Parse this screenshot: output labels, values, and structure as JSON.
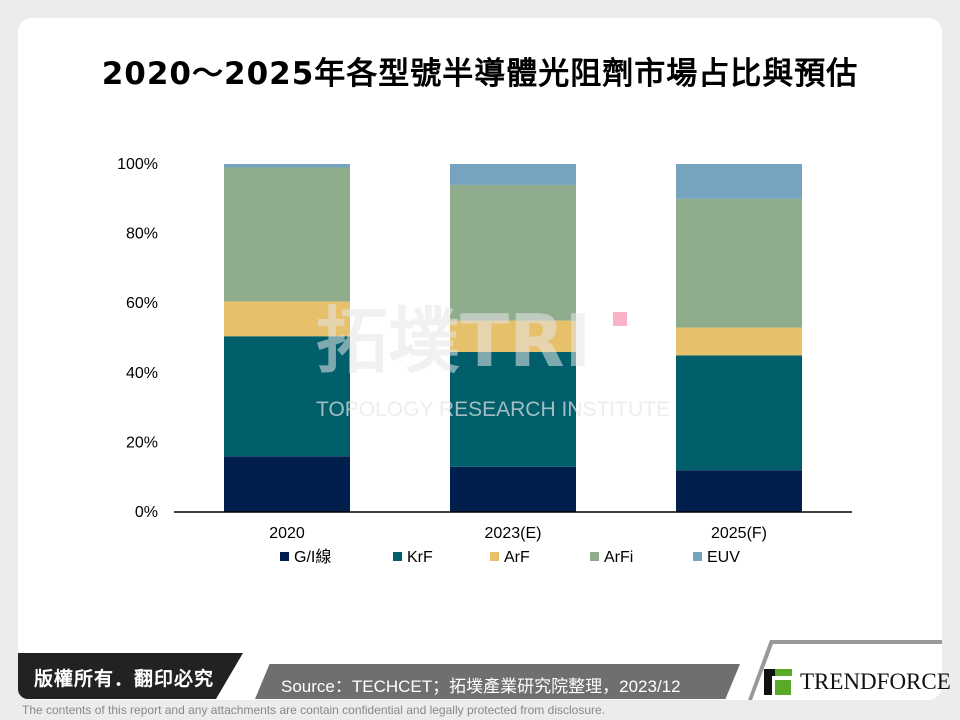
{
  "title": "2020～2025年各型號半導體光阻劑市場占比與預估",
  "chart_data": {
    "type": "bar",
    "stacked": true,
    "title": "2020～2025年各型號半導體光阻劑市場占比與預估",
    "categories": [
      "2020",
      "2023(E)",
      "2025(F)"
    ],
    "yticks": [
      "0%",
      "20%",
      "40%",
      "60%",
      "80%",
      "100%"
    ],
    "ylim": [
      0,
      100
    ],
    "legend_position": "bottom",
    "series": [
      {
        "name": "G/I線",
        "color": "#001f4d",
        "values": [
          16,
          13,
          12
        ]
      },
      {
        "name": "KrF",
        "color": "#005f6b",
        "values": [
          34.5,
          33,
          33
        ]
      },
      {
        "name": "ArF",
        "color": "#e6c06a",
        "values": [
          10,
          9,
          8
        ]
      },
      {
        "name": "ArFi",
        "color": "#8fac8d",
        "values": [
          38.5,
          39,
          37
        ]
      },
      {
        "name": "EUV",
        "color": "#76a3bd",
        "values": [
          1,
          6,
          10
        ]
      }
    ]
  },
  "watermark": {
    "main": "拓墣TRI",
    "sub": "TOPOLOGY RESEARCH INSTITUTE"
  },
  "footer": {
    "copyright": "版權所有．翻印必究",
    "source": "Source：TECHCET；拓墣產業研究院整理，2023/12",
    "logo": "TRENDFORCE",
    "disclaimer": "The contents of this report and any attachments are contain confidential and legally protected from disclosure."
  }
}
